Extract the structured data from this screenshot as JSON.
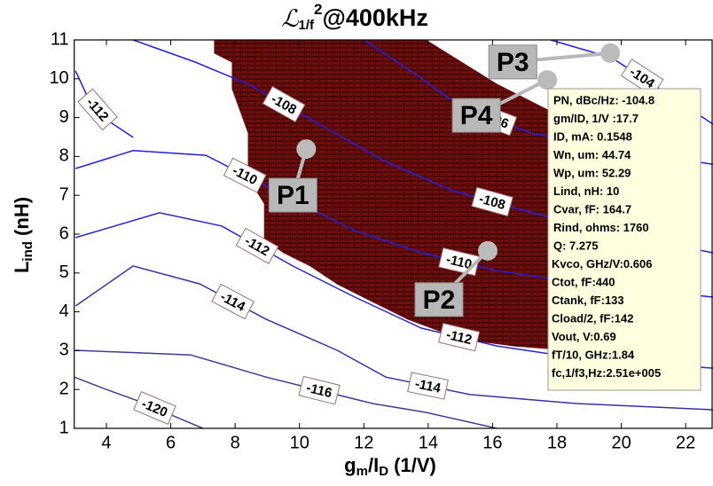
{
  "chart_data": {
    "type": "contour",
    "title": {
      "symbol": "ℒ",
      "sub": "1/f",
      "sup": "2",
      "text": "@400kHz"
    },
    "xlabel": {
      "main": "g",
      "sub1": "m",
      "mid": "/I",
      "sub2": "D",
      "rest": " (1/V)"
    },
    "ylabel": {
      "main": "L",
      "sub": "ind",
      "rest": " (nH)"
    },
    "xlim": [
      3,
      22.85
    ],
    "ylim": [
      1,
      11
    ],
    "xticks": [
      4,
      6,
      8,
      10,
      12,
      14,
      16,
      18,
      20,
      22
    ],
    "yticks": [
      1,
      2,
      3,
      4,
      5,
      6,
      7,
      8,
      9,
      10,
      11
    ],
    "region": {
      "color": "#6e0e0e",
      "x": [
        7.36,
        13.92,
        16.13,
        17.78,
        21.64,
        21.64,
        20.54,
        19.99,
        18.89,
        17.78,
        16.68,
        15.58,
        14.47,
        13.37,
        12.27,
        11.17,
        10.34,
        9.51,
        8.91,
        8.91,
        8.41,
        8.41,
        7.91,
        7.91,
        7.36
      ],
      "y": [
        11,
        11,
        9.86,
        9.17,
        7.92,
        2.78,
        2.78,
        2.89,
        2.94,
        3.05,
        3.12,
        3.24,
        3.47,
        3.81,
        4.26,
        4.72,
        5.18,
        5.52,
        5.86,
        6.78,
        7.46,
        8.6,
        9.74,
        10.43,
        10.66
      ]
    },
    "contours": [
      {
        "label": "-104",
        "color": "#2020e0",
        "x": [
          17.8,
          19.7,
          21.6,
          22.85
        ],
        "y": [
          11,
          10.54,
          9.52,
          8.83
        ]
      },
      {
        "label": "-106",
        "color": "#2020e0",
        "x": [
          12.0,
          13.65,
          15.0,
          17.2,
          20.0,
          22.85
        ],
        "y": [
          11,
          10.09,
          9.29,
          8.6,
          8.15,
          7.8
        ]
      },
      {
        "label": "-108",
        "color": "#2020e0",
        "x": [
          4.83,
          6.76,
          8.41,
          10.62,
          12.55,
          14.75,
          17.23,
          19.99,
          22.85
        ],
        "y": [
          11,
          10.43,
          9.86,
          8.83,
          7.92,
          7.12,
          6.55,
          5.98,
          5.52
        ]
      },
      {
        "label": "-112",
        "color": "#2020e0",
        "x": [
          3.04,
          3.45,
          4.0,
          4.83
        ],
        "y": [
          10.2,
          9.47,
          8.95,
          8.49
        ]
      },
      {
        "label": "-110",
        "color": "#2020e0",
        "x": [
          3.04,
          4.83,
          7.09,
          9.52,
          11.72,
          13.79,
          16.13,
          18.89,
          22.85
        ],
        "y": [
          7.69,
          8.15,
          8.03,
          7.0,
          6.09,
          5.52,
          5.06,
          4.72,
          4.38
        ]
      },
      {
        "label": "-112",
        "color": "#2828c8",
        "x": [
          3.04,
          5.65,
          7.58,
          9.79,
          11.72,
          13.79,
          16.13,
          18.89,
          22.85
        ],
        "y": [
          5.91,
          6.55,
          6.21,
          5.18,
          4.38,
          3.58,
          3.12,
          2.78,
          2.55
        ]
      },
      {
        "label": "-114",
        "color": "#3434a8",
        "x": [
          3.04,
          4.83,
          6.9,
          8.96,
          11.17,
          12.68,
          15.3,
          18.6,
          22.85
        ],
        "y": [
          4.15,
          5.18,
          4.72,
          3.81,
          3.01,
          2.32,
          1.87,
          1.64,
          1.48
        ]
      },
      {
        "label": "-116",
        "color": "#3c3c98",
        "x": [
          3.04,
          6.62,
          8.96,
          12.27,
          13.93,
          16.13
        ],
        "y": [
          3.01,
          2.89,
          2.32,
          1.64,
          1.41,
          1.0
        ]
      },
      {
        "label": "-120",
        "color": "#40408c",
        "x": [
          3,
          4,
          5,
          6,
          7
        ],
        "y": [
          2.32,
          2.0,
          1.7,
          1.35,
          1.0
        ]
      }
    ],
    "points": [
      {
        "label": "P1",
        "x": 10.21,
        "y": 8.19
      },
      {
        "label": "P2",
        "x": 15.85,
        "y": 5.57
      },
      {
        "label": "P3",
        "x": 19.66,
        "y": 10.66
      },
      {
        "label": "P4",
        "x": 17.7,
        "y": 9.97
      }
    ],
    "datatip": {
      "lines": [
        "PN, dBc/Hz: -104.8",
        "gm/ID, 1/V :17.7",
        "ID, mA: 0.1548",
        "Wn, um: 44.74",
        "Wp, um: 52.29",
        "Lind, nH: 10",
        "Cvar, fF: 164.7",
        "Rind, ohms: 1760",
        "Q: 7.275",
        "Kvco, GHz/V:0.606",
        "Ctot, fF:440",
        "Ctank, fF:133",
        "Cload/2, fF:142",
        "Vout, V:0.69",
        "fT/10, GHz:1.84",
        "fc,1/f3,Hz:2.51e+005"
      ]
    }
  }
}
